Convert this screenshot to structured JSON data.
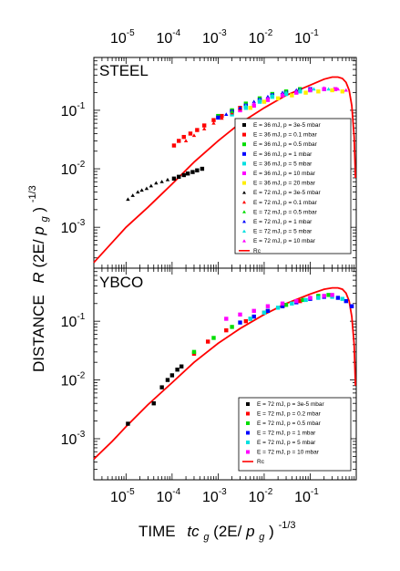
{
  "chart_data": [
    {
      "panel": "STEEL",
      "type": "scatter",
      "label": "STEEL",
      "xlabel": "TIME  tc_g(2E/p_g)^-1/3",
      "ylabel": "DISTANCE  R(2E/p_g)^-1/3",
      "xscale": "log",
      "yscale": "log",
      "xlim": [
        2e-06,
        1
      ],
      "ylim": [
        0.0002,
        0.8
      ],
      "x_ticks": [
        "10^-5",
        "10^-4",
        "10^-3",
        "10^-2",
        "10^-1"
      ],
      "y_ticks": [
        "10^-3",
        "10^-2",
        "10^-1"
      ],
      "legend_position": "right",
      "series": [
        {
          "name": "E = 36 mJ, p = 3e-5 mbar",
          "color": "#000000",
          "marker": "square",
          "points": [
            [
              0.00011,
              0.0068
            ],
            [
              0.00014,
              0.0073
            ],
            [
              0.00018,
              0.0078
            ],
            [
              0.00022,
              0.0083
            ],
            [
              0.00028,
              0.0088
            ],
            [
              0.00035,
              0.0094
            ],
            [
              0.00045,
              0.01
            ]
          ]
        },
        {
          "name": "E = 36 mJ, p = 0.1 mbar",
          "color": "#ff0000",
          "marker": "square",
          "points": [
            [
              0.00011,
              0.025
            ],
            [
              0.00014,
              0.03
            ],
            [
              0.00018,
              0.035
            ],
            [
              0.00025,
              0.04
            ],
            [
              0.00035,
              0.046
            ],
            [
              0.0005,
              0.055
            ],
            [
              0.0008,
              0.068
            ],
            [
              0.0012,
              0.08
            ],
            [
              0.002,
              0.096
            ],
            [
              0.003,
              0.11
            ]
          ]
        },
        {
          "name": "E = 36 mJ, p = 0.5 mbar",
          "color": "#00dd00",
          "marker": "square",
          "points": [
            [
              0.001,
              0.08
            ],
            [
              0.002,
              0.1
            ],
            [
              0.004,
              0.13
            ],
            [
              0.008,
              0.16
            ],
            [
              0.015,
              0.19
            ],
            [
              0.03,
              0.21
            ],
            [
              0.06,
              0.23
            ]
          ]
        },
        {
          "name": "E = 36 mJ, p = 1 mbar",
          "color": "#0000ff",
          "marker": "square",
          "points": [
            [
              0.001,
              0.075
            ],
            [
              0.002,
              0.095
            ],
            [
              0.004,
              0.12
            ],
            [
              0.008,
              0.15
            ],
            [
              0.015,
              0.18
            ],
            [
              0.03,
              0.2
            ],
            [
              0.06,
              0.22
            ],
            [
              0.1,
              0.23
            ]
          ]
        },
        {
          "name": "E = 36 mJ, p = 5 mbar",
          "color": "#00e0e0",
          "marker": "square",
          "points": [
            [
              0.002,
              0.085
            ],
            [
              0.004,
              0.11
            ],
            [
              0.008,
              0.14
            ],
            [
              0.015,
              0.17
            ],
            [
              0.03,
              0.19
            ],
            [
              0.06,
              0.21
            ],
            [
              0.1,
              0.22
            ],
            [
              0.2,
              0.23
            ]
          ]
        },
        {
          "name": "E = 36 mJ, p = 10 mbar",
          "color": "#ff00ff",
          "marker": "square",
          "points": [
            [
              0.003,
              0.1
            ],
            [
              0.006,
              0.12
            ],
            [
              0.012,
              0.15
            ],
            [
              0.025,
              0.18
            ],
            [
              0.05,
              0.2
            ],
            [
              0.1,
              0.22
            ],
            [
              0.2,
              0.23
            ],
            [
              0.35,
              0.23
            ]
          ]
        },
        {
          "name": "E = 36 mJ, p = 20 mbar",
          "color": "#ffee00",
          "marker": "square",
          "points": [
            [
              0.005,
              0.11
            ],
            [
              0.01,
              0.14
            ],
            [
              0.02,
              0.16
            ],
            [
              0.04,
              0.18
            ],
            [
              0.08,
              0.2
            ],
            [
              0.15,
              0.21
            ],
            [
              0.3,
              0.22
            ],
            [
              0.5,
              0.21
            ]
          ]
        },
        {
          "name": "E = 72 mJ, p = 3e-5 mbar",
          "color": "#000000",
          "marker": "triangle",
          "points": [
            [
              1.1e-05,
              0.003
            ],
            [
              1.4e-05,
              0.0035
            ],
            [
              1.8e-05,
              0.004
            ],
            [
              2.2e-05,
              0.0043
            ],
            [
              2.8e-05,
              0.0046
            ],
            [
              3.5e-05,
              0.0051
            ],
            [
              4.5e-05,
              0.0057
            ],
            [
              6e-05,
              0.006
            ],
            [
              8e-05,
              0.0065
            ]
          ]
        },
        {
          "name": "E = 72 mJ, p = 0.1 mbar",
          "color": "#ff0000",
          "marker": "triangle",
          "points": [
            [
              0.0002,
              0.03
            ],
            [
              0.0003,
              0.037
            ],
            [
              0.0005,
              0.048
            ],
            [
              0.0008,
              0.06
            ],
            [
              0.0012,
              0.073
            ],
            [
              0.002,
              0.09
            ],
            [
              0.003,
              0.105
            ]
          ]
        },
        {
          "name": "E = 72 mJ, p = 0.5 mbar",
          "color": "#00dd00",
          "marker": "triangle",
          "points": [
            [
              0.002,
              0.095
            ],
            [
              0.004,
              0.12
            ],
            [
              0.008,
              0.15
            ],
            [
              0.015,
              0.18
            ],
            [
              0.03,
              0.21
            ],
            [
              0.06,
              0.23
            ]
          ]
        },
        {
          "name": "E = 72 mJ, p = 1 mbar",
          "color": "#0000ff",
          "marker": "triangle",
          "points": [
            [
              0.0015,
              0.085
            ],
            [
              0.003,
              0.11
            ],
            [
              0.006,
              0.14
            ],
            [
              0.012,
              0.17
            ],
            [
              0.025,
              0.2
            ],
            [
              0.05,
              0.22
            ],
            [
              0.1,
              0.23
            ]
          ]
        },
        {
          "name": "E = 72 mJ, p = 5 mbar",
          "color": "#00e0e0",
          "marker": "triangle",
          "points": [
            [
              0.004,
              0.12
            ],
            [
              0.008,
              0.15
            ],
            [
              0.015,
              0.18
            ],
            [
              0.03,
              0.2
            ],
            [
              0.06,
              0.22
            ],
            [
              0.12,
              0.23
            ],
            [
              0.25,
              0.23
            ]
          ]
        },
        {
          "name": "E = 72 mJ, p = 10 mbar",
          "color": "#ff00ff",
          "marker": "triangle",
          "points": [
            [
              0.006,
              0.13
            ],
            [
              0.012,
              0.16
            ],
            [
              0.025,
              0.19
            ],
            [
              0.05,
              0.21
            ],
            [
              0.1,
              0.23
            ],
            [
              0.2,
              0.24
            ],
            [
              0.4,
              0.23
            ],
            [
              0.6,
              0.22
            ]
          ]
        }
      ],
      "curve": {
        "name": "Rc",
        "color": "#ff0000",
        "points": [
          [
            2e-06,
            0.00025
          ],
          [
            5e-06,
            0.00055
          ],
          [
            1e-05,
            0.001
          ],
          [
            3e-05,
            0.0022
          ],
          [
            0.0001,
            0.0055
          ],
          [
            0.0003,
            0.013
          ],
          [
            0.001,
            0.03
          ],
          [
            0.003,
            0.06
          ],
          [
            0.01,
            0.11
          ],
          [
            0.03,
            0.18
          ],
          [
            0.1,
            0.27
          ],
          [
            0.2,
            0.34
          ],
          [
            0.3,
            0.37
          ],
          [
            0.4,
            0.37
          ],
          [
            0.5,
            0.35
          ],
          [
            0.6,
            0.3
          ],
          [
            0.7,
            0.22
          ],
          [
            0.8,
            0.12
          ],
          [
            0.9,
            0.035
          ],
          [
            0.96,
            0.007
          ]
        ]
      }
    },
    {
      "panel": "YBCO",
      "type": "scatter",
      "label": "YBCO",
      "xlabel": "TIME  tc_g(2E/p_g)^-1/3",
      "ylabel": "DISTANCE  R(2E/p_g)^-1/3",
      "xscale": "log",
      "yscale": "log",
      "xlim": [
        2e-06,
        1
      ],
      "ylim": [
        0.0002,
        0.8
      ],
      "x_ticks": [
        "10^-5",
        "10^-4",
        "10^-3",
        "10^-2",
        "10^-1"
      ],
      "y_ticks": [
        "10^-3",
        "10^-2",
        "10^-1"
      ],
      "legend_position": "bottom-right",
      "series": [
        {
          "name": "E = 72 mJ, p = 3e-5 mbar",
          "color": "#000000",
          "marker": "square",
          "points": [
            [
              1.1e-05,
              0.0018
            ],
            [
              4e-05,
              0.004
            ],
            [
              6e-05,
              0.0075
            ],
            [
              8e-05,
              0.01
            ],
            [
              0.0001,
              0.012
            ],
            [
              0.00013,
              0.015
            ],
            [
              0.00016,
              0.017
            ]
          ]
        },
        {
          "name": "E = 72 mJ, p = 0.2 mbar",
          "color": "#ff0000",
          "marker": "square",
          "points": [
            [
              0.0003,
              0.028
            ],
            [
              0.0006,
              0.045
            ],
            [
              0.0015,
              0.07
            ],
            [
              0.004,
              0.1
            ],
            [
              0.01,
              0.14
            ],
            [
              0.025,
              0.18
            ],
            [
              0.06,
              0.22
            ],
            [
              0.15,
              0.26
            ]
          ]
        },
        {
          "name": "E = 72 mJ, p = 0.5 mbar",
          "color": "#00dd00",
          "marker": "square",
          "points": [
            [
              0.0003,
              0.03
            ],
            [
              0.0008,
              0.052
            ],
            [
              0.002,
              0.08
            ],
            [
              0.005,
              0.11
            ],
            [
              0.012,
              0.15
            ],
            [
              0.03,
              0.19
            ],
            [
              0.07,
              0.23
            ],
            [
              0.15,
              0.27
            ],
            [
              0.25,
              0.28
            ]
          ]
        },
        {
          "name": "E = 72 mJ, p = 1 mbar",
          "color": "#0000ff",
          "marker": "square",
          "points": [
            [
              0.003,
              0.095
            ],
            [
              0.006,
              0.12
            ],
            [
              0.012,
              0.15
            ],
            [
              0.025,
              0.18
            ],
            [
              0.05,
              0.21
            ],
            [
              0.1,
              0.24
            ],
            [
              0.2,
              0.26
            ],
            [
              0.4,
              0.25
            ],
            [
              0.6,
              0.22
            ],
            [
              0.8,
              0.18
            ]
          ]
        },
        {
          "name": "E = 72 mJ, p = 5 mbar",
          "color": "#00e0e0",
          "marker": "square",
          "points": [
            [
              0.005,
              0.11
            ],
            [
              0.01,
              0.14
            ],
            [
              0.02,
              0.17
            ],
            [
              0.04,
              0.2
            ],
            [
              0.08,
              0.23
            ],
            [
              0.15,
              0.25
            ],
            [
              0.3,
              0.26
            ],
            [
              0.5,
              0.24
            ]
          ]
        },
        {
          "name": "E = 72 mJ, p = 10 mbar",
          "color": "#ff00ff",
          "marker": "square",
          "points": [
            [
              0.0015,
              0.11
            ],
            [
              0.003,
              0.13
            ],
            [
              0.006,
              0.15
            ],
            [
              0.012,
              0.18
            ],
            [
              0.025,
              0.2
            ],
            [
              0.05,
              0.22
            ],
            [
              0.1,
              0.25
            ],
            [
              0.2,
              0.27
            ],
            [
              0.3,
              0.28
            ]
          ]
        }
      ],
      "curve": {
        "name": "Rc",
        "color": "#ff0000",
        "points": [
          [
            2e-06,
            0.00045
          ],
          [
            5e-06,
            0.0009
          ],
          [
            1e-05,
            0.0016
          ],
          [
            3e-05,
            0.0038
          ],
          [
            0.0001,
            0.009
          ],
          [
            0.0003,
            0.02
          ],
          [
            0.001,
            0.042
          ],
          [
            0.003,
            0.075
          ],
          [
            0.01,
            0.13
          ],
          [
            0.03,
            0.2
          ],
          [
            0.1,
            0.29
          ],
          [
            0.2,
            0.35
          ],
          [
            0.3,
            0.37
          ],
          [
            0.4,
            0.37
          ],
          [
            0.5,
            0.35
          ],
          [
            0.6,
            0.3
          ],
          [
            0.7,
            0.22
          ],
          [
            0.8,
            0.12
          ],
          [
            0.9,
            0.04
          ],
          [
            0.96,
            0.008
          ]
        ]
      }
    }
  ],
  "axis_text": {
    "top_ticks": [
      {
        "base": "10",
        "exp": "-5"
      },
      {
        "base": "10",
        "exp": "-4"
      },
      {
        "base": "10",
        "exp": "-3"
      },
      {
        "base": "10",
        "exp": "-2"
      },
      {
        "base": "10",
        "exp": "-1"
      }
    ],
    "bottom_ticks": [
      {
        "base": "10",
        "exp": "-5"
      },
      {
        "base": "10",
        "exp": "-4"
      },
      {
        "base": "10",
        "exp": "-3"
      },
      {
        "base": "10",
        "exp": "-2"
      },
      {
        "base": "10",
        "exp": "-1"
      }
    ],
    "y_ticks": [
      {
        "base": "10",
        "exp": "-1"
      },
      {
        "base": "10",
        "exp": "-2"
      },
      {
        "base": "10",
        "exp": "-3"
      }
    ],
    "xlabel_word": "TIME",
    "xlabel_italic_t": "tc",
    "xlabel_sub_g": "g",
    "xlabel_open": "(2E/",
    "xlabel_p": "p",
    "xlabel_close": ")",
    "xlabel_exp": "-1/3",
    "ylabel_word": "DISTANCE",
    "ylabel_italic": "R",
    "ylabel_open": "(2E/",
    "ylabel_p": "p",
    "ylabel_sub_g": "g",
    "ylabel_close": ")",
    "ylabel_exp": "-1/3"
  }
}
